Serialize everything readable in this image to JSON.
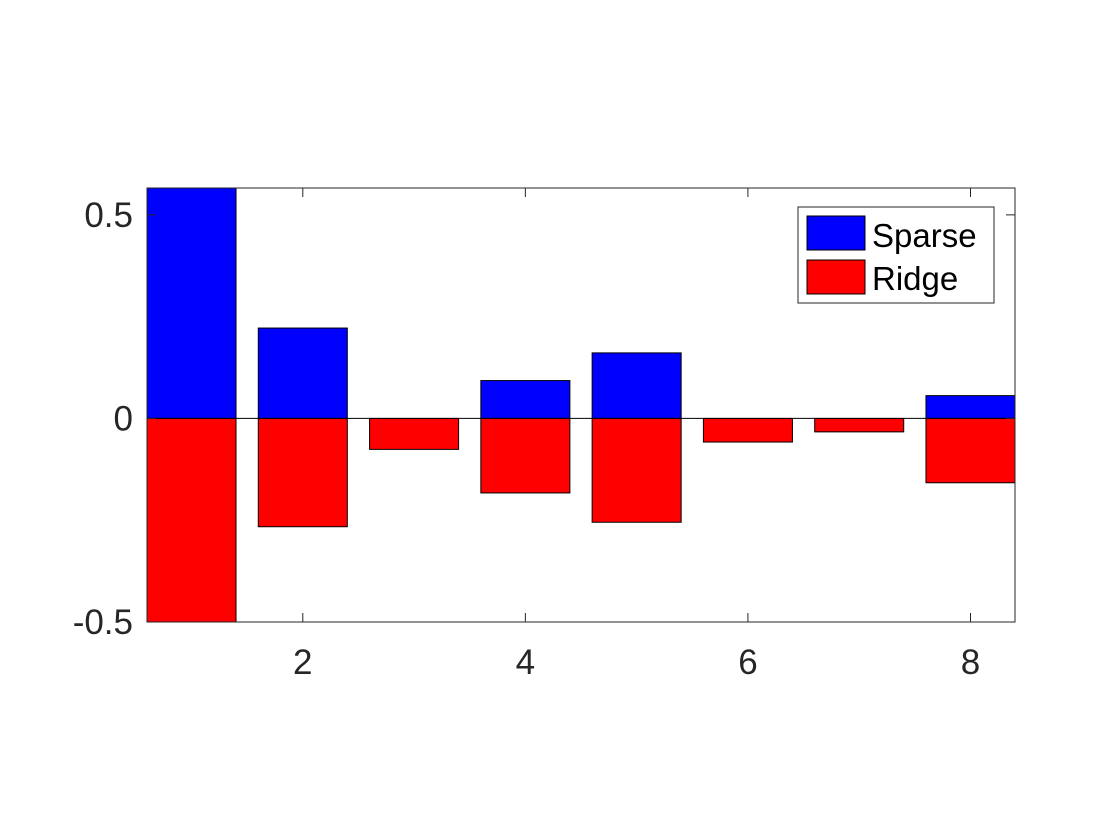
{
  "chart_data": {
    "type": "bar",
    "title": "",
    "xlabel": "",
    "ylabel": "",
    "x": [
      1,
      2,
      3,
      4,
      5,
      6,
      7,
      8
    ],
    "series": [
      {
        "name": "Sparse",
        "color": "#0000ff",
        "values": [
          0.566,
          0.222,
          0.0,
          0.093,
          0.161,
          0.0,
          0.0,
          0.056
        ]
      },
      {
        "name": "Ridge",
        "color": "#ff0000",
        "values": [
          -0.5,
          -0.266,
          -0.076,
          -0.183,
          -0.255,
          -0.058,
          -0.033,
          -0.158
        ]
      }
    ],
    "xlim": [
      0.6,
      8.4
    ],
    "ylim": [
      -0.5,
      0.566
    ],
    "xticks": [
      2,
      4,
      6,
      8
    ],
    "xtick_labels": [
      "2",
      "4",
      "6",
      "8"
    ],
    "yticks": [
      -0.5,
      0,
      0.5
    ],
    "ytick_labels": [
      "-0.5",
      "0",
      "0.5"
    ],
    "legend": "top-right",
    "grid": false
  }
}
